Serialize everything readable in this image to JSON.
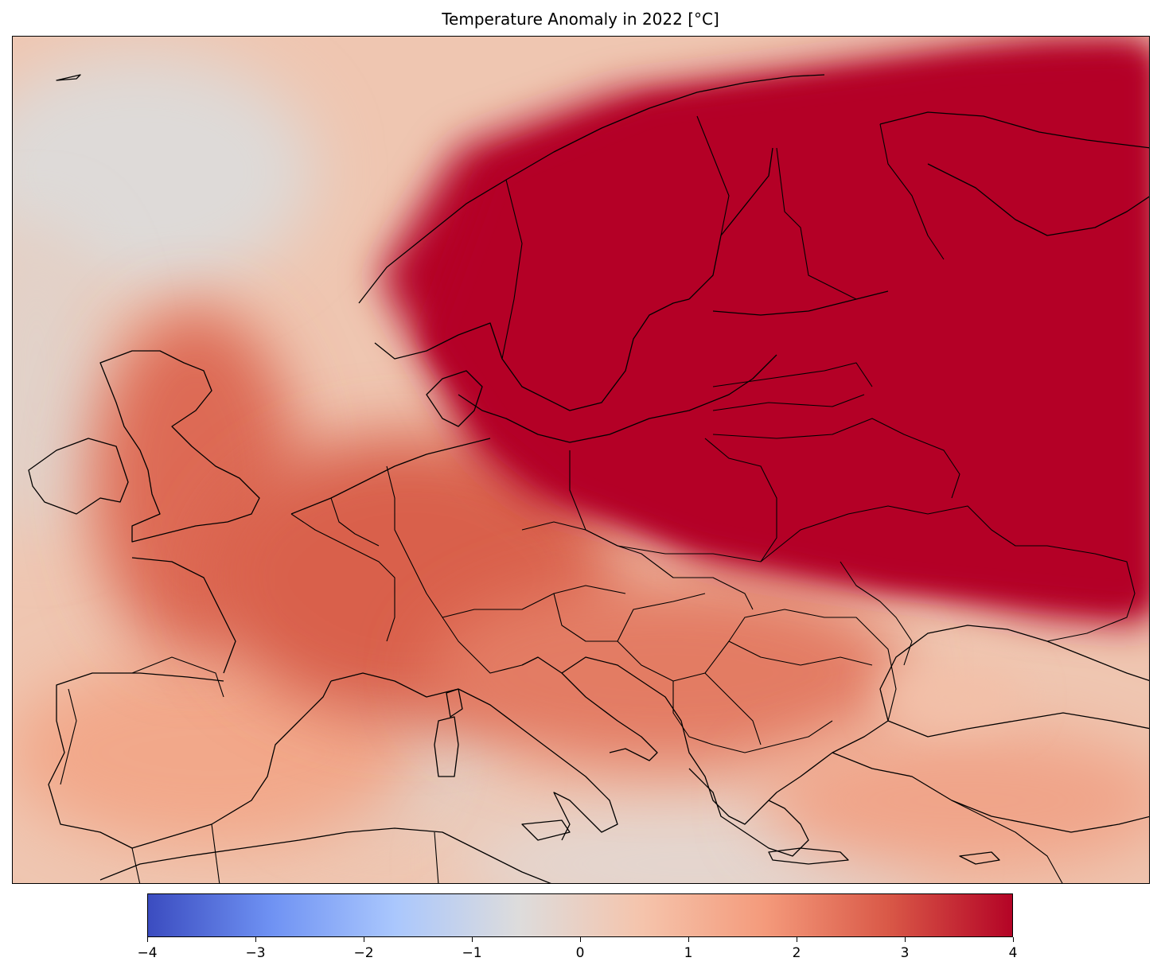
{
  "title": "Temperature Anomaly in 2022 [°C]",
  "colorbar": {
    "min": -4,
    "max": 4,
    "tick_labels": [
      "−4",
      "−3",
      "−2",
      "−1",
      "0",
      "1",
      "2",
      "3",
      "4"
    ],
    "colors": [
      "#3b4cc0",
      "#6f92f3",
      "#aac7fd",
      "#dddcdc",
      "#f5c4ac",
      "#f49a7b",
      "#d95847",
      "#b40426"
    ]
  },
  "map": {
    "region": "Europe",
    "background_color": "#e8c4ae",
    "coastline_color": "#000000",
    "hotspot_color": "#b40426"
  }
}
